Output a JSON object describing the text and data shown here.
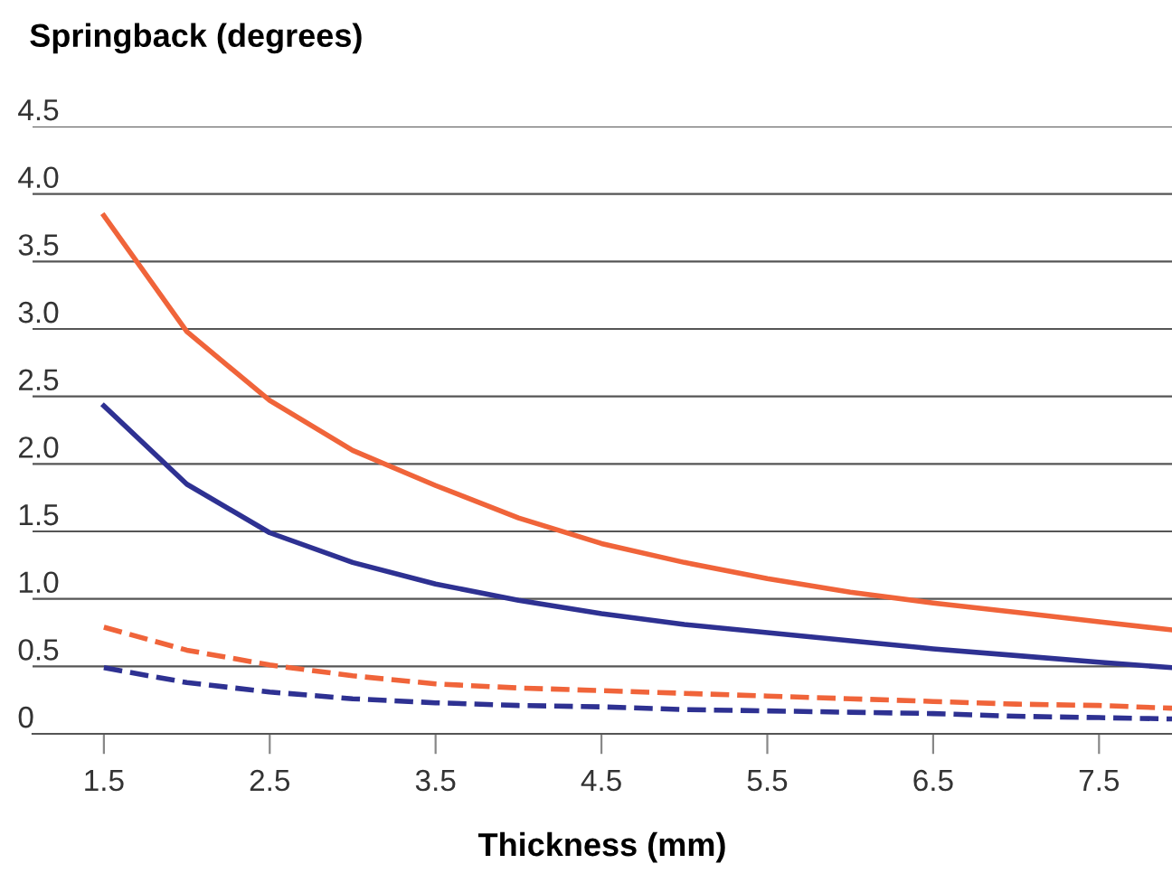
{
  "chart_data": {
    "type": "line",
    "xlabel": "Thickness (mm)",
    "ylabel": "Springback (degrees)",
    "x": [
      1.5,
      2.0,
      2.5,
      3.0,
      3.5,
      4.0,
      4.5,
      5.0,
      5.5,
      6.0,
      6.5,
      7.0,
      7.5,
      7.94
    ],
    "series": [
      {
        "color": "#f0643a",
        "line_style": "solid",
        "values": [
          3.84,
          2.98,
          2.47,
          2.1,
          1.84,
          1.6,
          1.41,
          1.27,
          1.15,
          1.05,
          0.97,
          0.9,
          0.83,
          0.77
        ]
      },
      {
        "color": "#2e3192",
        "line_style": "solid",
        "values": [
          2.43,
          1.85,
          1.49,
          1.27,
          1.11,
          0.99,
          0.89,
          0.81,
          0.75,
          0.69,
          0.63,
          0.58,
          0.53,
          0.49
        ]
      },
      {
        "color": "#f0643a",
        "line_style": "dashed",
        "values": [
          0.79,
          0.62,
          0.51,
          0.43,
          0.37,
          0.34,
          0.32,
          0.3,
          0.28,
          0.26,
          0.24,
          0.22,
          0.21,
          0.19
        ]
      },
      {
        "color": "#2e3192",
        "line_style": "dashed",
        "values": [
          0.49,
          0.38,
          0.31,
          0.26,
          0.23,
          0.21,
          0.2,
          0.18,
          0.17,
          0.16,
          0.15,
          0.13,
          0.12,
          0.11
        ]
      }
    ],
    "xlim": [
      1.07,
      7.94
    ],
    "ylim": [
      0,
      4.5
    ],
    "xticks": [
      1.5,
      2.5,
      3.5,
      4.5,
      5.5,
      6.5,
      7.5
    ],
    "yticks": [
      0,
      0.5,
      {
        "value": 1,
        "label": "1.0"
      },
      1.5,
      {
        "value": 2,
        "label": "2.0"
      },
      2.5,
      {
        "value": 3,
        "label": "3.0"
      },
      3.5,
      {
        "value": 4,
        "label": "4.0"
      },
      4.5
    ],
    "grid": "y",
    "legend": false,
    "marker": "none"
  }
}
